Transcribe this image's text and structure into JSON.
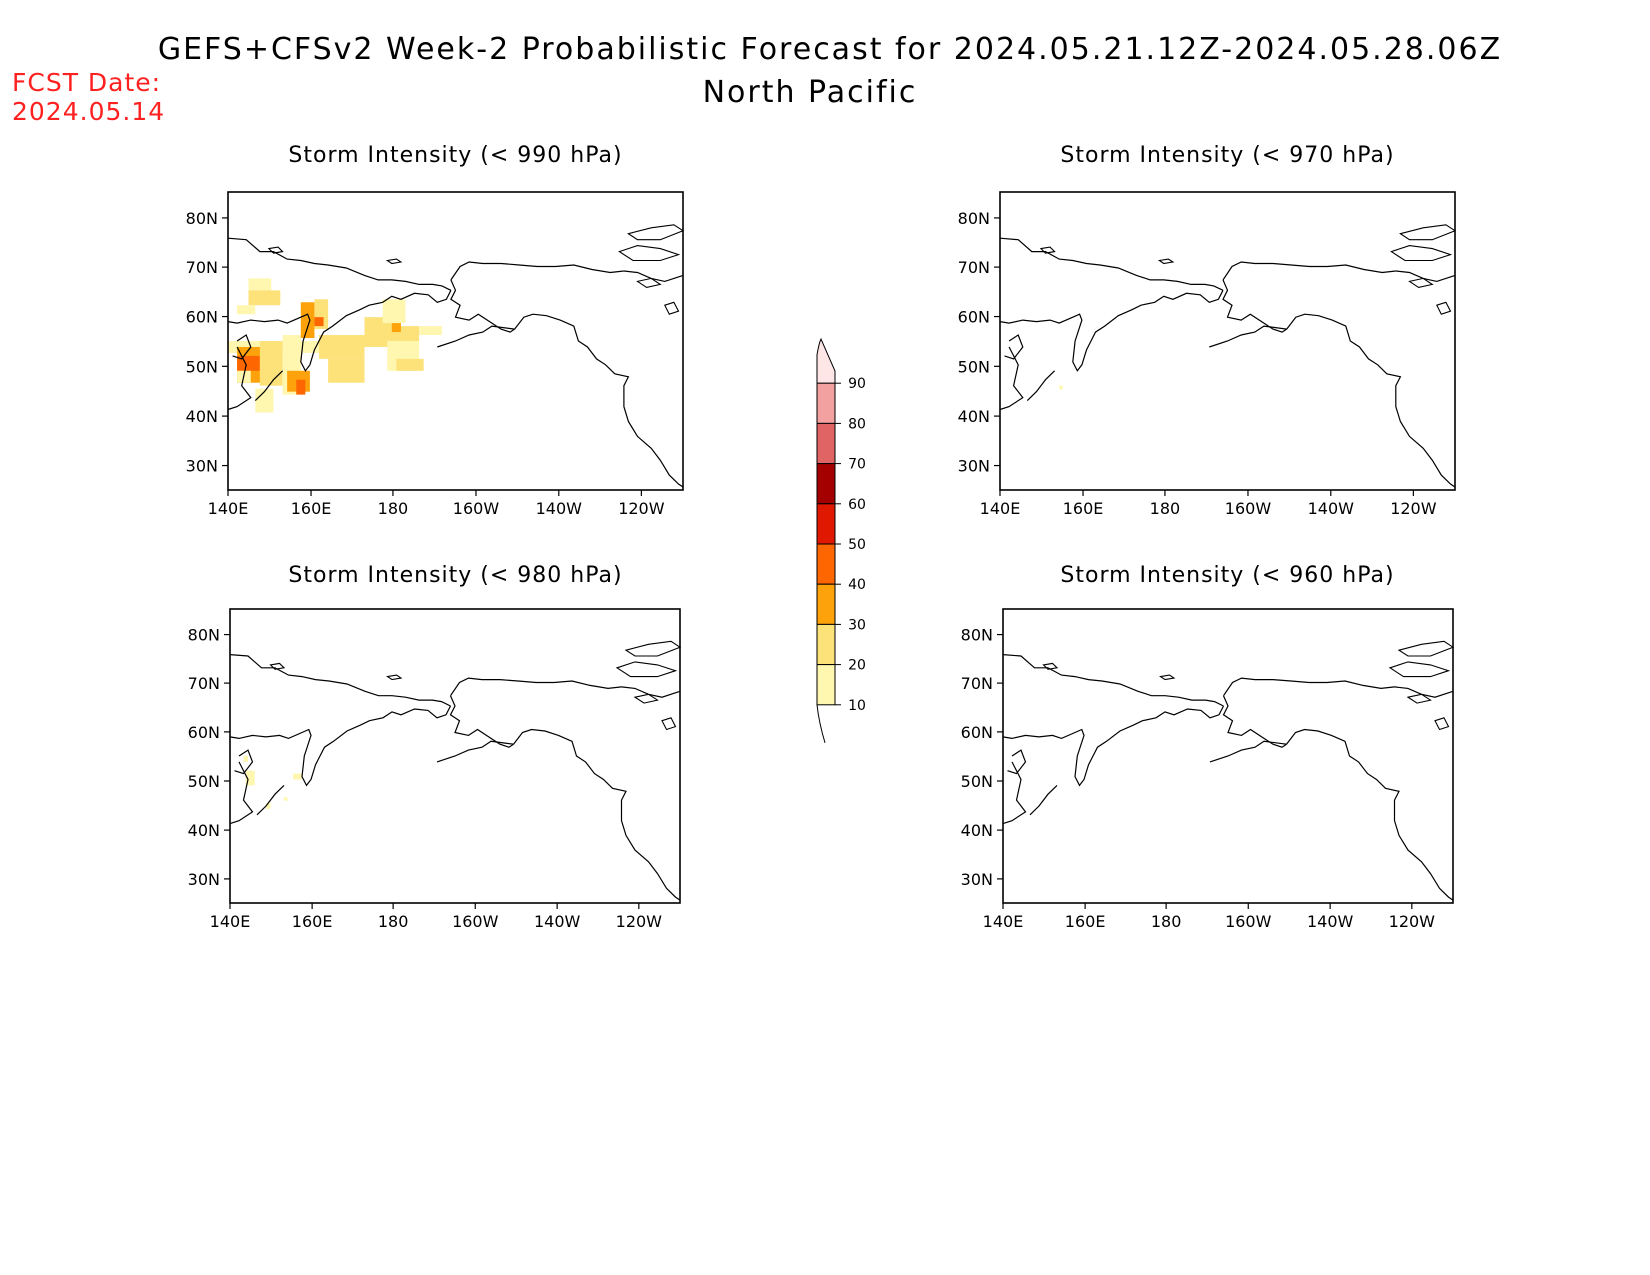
{
  "header": {
    "title": "GEFS+CFSv2 Week-2 Probabilistic Forecast for 2024.05.21.12Z-2024.05.28.06Z",
    "subtitle": "North Pacific"
  },
  "forecast": {
    "label": "FCST Date:",
    "date": "2024.05.14"
  },
  "axes": {
    "lon_labels": [
      "140E",
      "160E",
      "180",
      "160W",
      "140W",
      "120W"
    ],
    "lat_labels": [
      "80N",
      "70N",
      "60N",
      "50N",
      "40N",
      "30N"
    ]
  },
  "colorbar": {
    "levels": [
      "10",
      "20",
      "30",
      "40",
      "50",
      "60",
      "70",
      "80",
      "90"
    ],
    "colors": [
      "#fff6b0",
      "#fde27a",
      "#fda20a",
      "#fd6600",
      "#e01800",
      "#a50000",
      "#e06464",
      "#f2a0a0",
      "#ffe6e6"
    ]
  },
  "panels": [
    {
      "id": "p990",
      "title": "Storm Intensity (< 990 hPa)"
    },
    {
      "id": "p970",
      "title": "Storm Intensity (< 970 hPa)"
    },
    {
      "id": "p980",
      "title": "Storm Intensity (< 980 hPa)"
    },
    {
      "id": "p960",
      "title": "Storm Intensity (< 960 hPa)"
    }
  ]
}
